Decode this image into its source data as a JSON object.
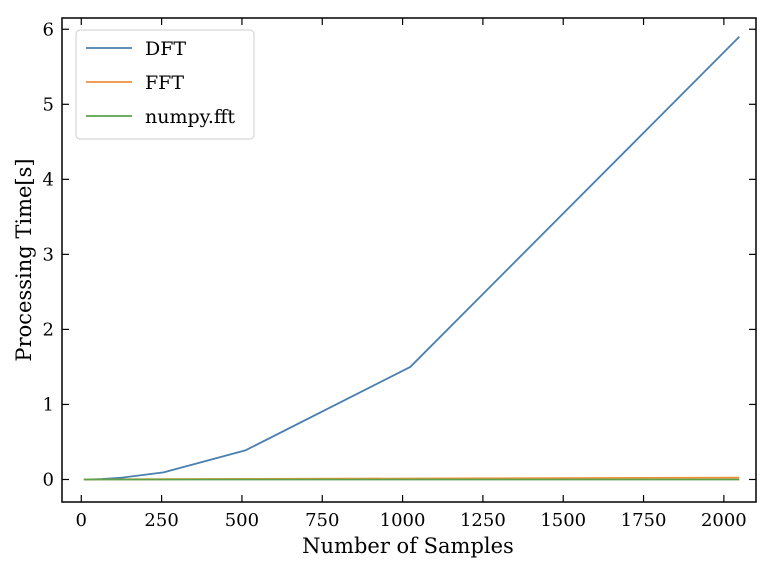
{
  "chart_data": {
    "type": "line",
    "title": "",
    "xlabel": "Number of Samples",
    "ylabel": "Processing Time[s]",
    "xlim": [
      -60,
      2100
    ],
    "ylim": [
      -0.3,
      6.15
    ],
    "xticks": [
      0,
      250,
      500,
      750,
      1000,
      1250,
      1500,
      1750,
      2000
    ],
    "yticks": [
      0,
      1,
      2,
      3,
      4,
      5,
      6
    ],
    "legend_position": "top-left",
    "grid": false,
    "series": [
      {
        "name": "DFT",
        "color": "#4a7fb0",
        "x": [
          8,
          16,
          32,
          64,
          128,
          256,
          512,
          1024,
          2048
        ],
        "y": [
          0.0,
          0.0,
          0.002,
          0.006,
          0.025,
          0.095,
          0.39,
          1.5,
          5.9
        ]
      },
      {
        "name": "FFT",
        "color": "#f0913a",
        "x": [
          8,
          16,
          32,
          64,
          128,
          256,
          512,
          1024,
          2048
        ],
        "y": [
          0.0,
          0.0,
          0.0005,
          0.001,
          0.002,
          0.004,
          0.007,
          0.013,
          0.025
        ]
      },
      {
        "name": "numpy.fft",
        "color": "#5aa34a",
        "x": [
          8,
          16,
          32,
          64,
          128,
          256,
          512,
          1024,
          2048
        ],
        "y": [
          0.0,
          0.0,
          0.0,
          0.0,
          0.0,
          0.0,
          0.0,
          0.0,
          0.0001
        ]
      }
    ]
  }
}
